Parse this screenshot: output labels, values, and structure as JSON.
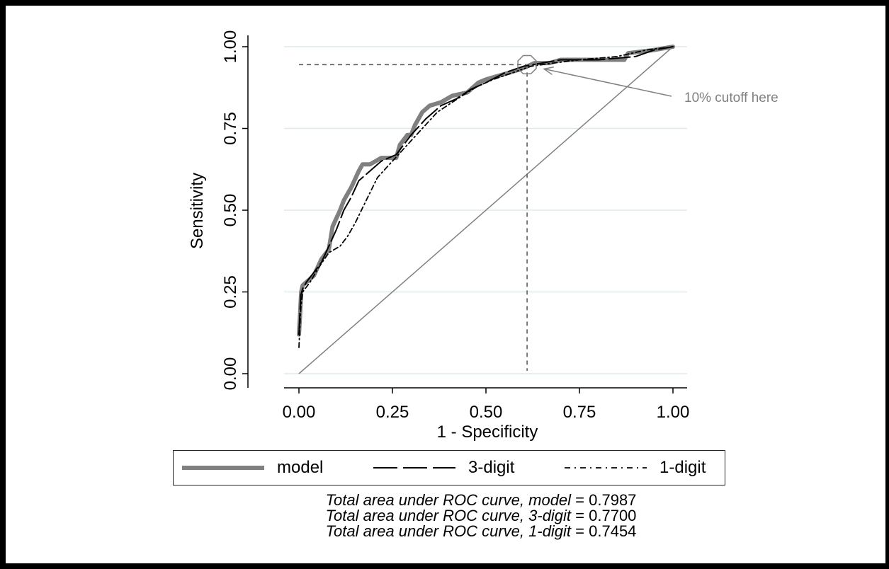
{
  "chart_data": {
    "type": "line",
    "xlabel": "1 - Specificity",
    "ylabel": "Sensitivity",
    "xlim": [
      0,
      1
    ],
    "ylim": [
      0,
      1
    ],
    "xticks": [
      "0.00",
      "0.25",
      "0.50",
      "0.75",
      "1.00"
    ],
    "yticks": [
      "0.00",
      "0.25",
      "0.50",
      "0.75",
      "1.00"
    ],
    "grid": "horizontal",
    "legend_position": "bottom",
    "series": [
      {
        "name": "model",
        "color": "#808080",
        "style": "solid-thick",
        "x": [
          0,
          0.003,
          0.006,
          0.01,
          0.02,
          0.04,
          0.06,
          0.08,
          0.09,
          0.11,
          0.12,
          0.14,
          0.16,
          0.17,
          0.19,
          0.22,
          0.26,
          0.27,
          0.29,
          0.3,
          0.31,
          0.33,
          0.35,
          0.38,
          0.41,
          0.45,
          0.48,
          0.5,
          0.53,
          0.56,
          0.59,
          0.61,
          0.63,
          0.67,
          0.7,
          0.75,
          0.8,
          0.83,
          0.87,
          0.88,
          0.95,
          1.0
        ],
        "y": [
          0.12,
          0.18,
          0.25,
          0.27,
          0.28,
          0.3,
          0.35,
          0.38,
          0.45,
          0.5,
          0.53,
          0.57,
          0.62,
          0.64,
          0.64,
          0.66,
          0.66,
          0.7,
          0.73,
          0.73,
          0.76,
          0.8,
          0.82,
          0.83,
          0.85,
          0.86,
          0.89,
          0.9,
          0.91,
          0.92,
          0.93,
          0.94,
          0.95,
          0.95,
          0.96,
          0.96,
          0.96,
          0.96,
          0.96,
          0.98,
          0.99,
          1.0
        ]
      },
      {
        "name": "3-digit",
        "color": "#000000",
        "style": "long-dash",
        "x": [
          0,
          0.005,
          0.01,
          0.02,
          0.04,
          0.06,
          0.08,
          0.1,
          0.12,
          0.14,
          0.16,
          0.19,
          0.22,
          0.26,
          0.3,
          0.34,
          0.38,
          0.42,
          0.46,
          0.5,
          0.55,
          0.6,
          0.65,
          0.7,
          0.8,
          0.9,
          0.95,
          1.0
        ],
        "y": [
          0.12,
          0.24,
          0.26,
          0.28,
          0.31,
          0.34,
          0.39,
          0.44,
          0.5,
          0.54,
          0.59,
          0.62,
          0.65,
          0.67,
          0.73,
          0.78,
          0.82,
          0.84,
          0.87,
          0.89,
          0.92,
          0.94,
          0.95,
          0.96,
          0.96,
          0.97,
          0.99,
          1.0
        ]
      },
      {
        "name": "1-digit",
        "color": "#000000",
        "style": "dash-dot",
        "x": [
          0,
          0.005,
          0.01,
          0.03,
          0.05,
          0.08,
          0.11,
          0.13,
          0.15,
          0.18,
          0.21,
          0.25,
          0.29,
          0.33,
          0.37,
          0.41,
          0.45,
          0.48,
          0.52,
          0.57,
          0.62,
          0.68,
          0.75,
          0.85,
          0.93,
          1.0
        ],
        "y": [
          0.08,
          0.2,
          0.25,
          0.28,
          0.32,
          0.37,
          0.39,
          0.42,
          0.46,
          0.53,
          0.6,
          0.65,
          0.7,
          0.75,
          0.8,
          0.83,
          0.86,
          0.88,
          0.9,
          0.92,
          0.94,
          0.95,
          0.96,
          0.97,
          0.99,
          1.0
        ]
      }
    ],
    "reference_line": {
      "x": [
        0,
        1
      ],
      "y": [
        0,
        1
      ],
      "color": "#808080"
    },
    "cutoff": {
      "x": 0.61,
      "y": 0.945,
      "annotation": "10% cutoff here",
      "annotation_color": "#808080"
    },
    "auc": [
      {
        "label": "Total area under ROC curve, model",
        "value": "0.7987"
      },
      {
        "label": "Total area under ROC curve, 3-digit",
        "value": "0.7700"
      },
      {
        "label": "Total area under ROC curve, 1-digit",
        "value": "0.7454"
      }
    ]
  }
}
